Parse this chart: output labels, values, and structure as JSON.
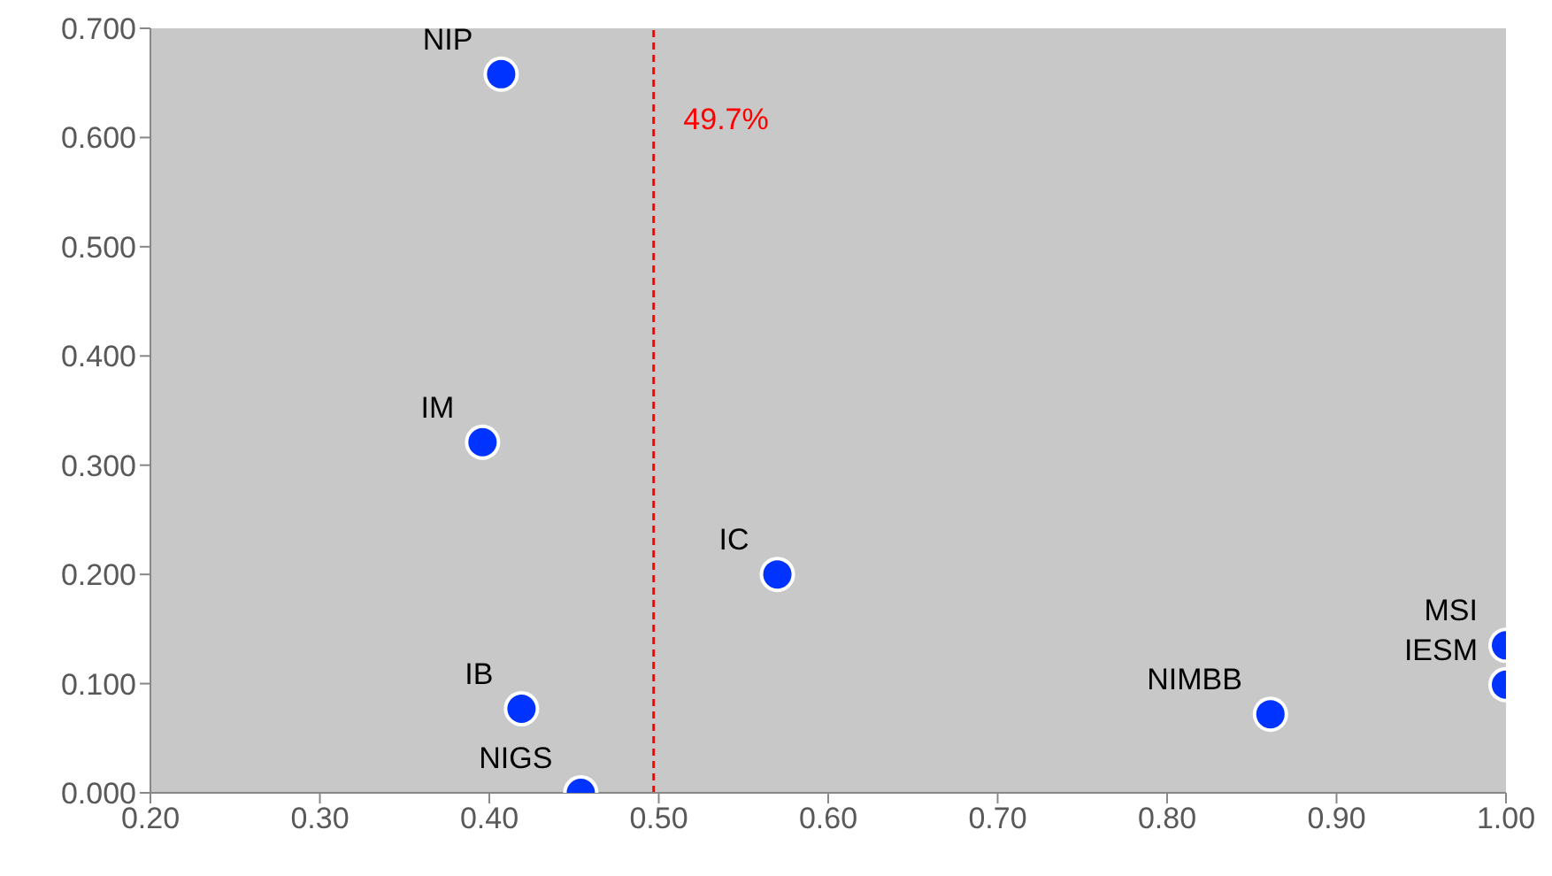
{
  "chart_data": {
    "type": "scatter",
    "x": [
      0.407,
      0.396,
      0.57,
      0.419,
      0.454,
      0.861,
      1.0,
      1.0
    ],
    "values": [
      0.658,
      0.321,
      0.2,
      0.077,
      0.0,
      0.072,
      0.135,
      0.099
    ],
    "color": "#0033ff",
    "marker": "circle",
    "xlim": [
      0.2,
      1.0
    ],
    "xticks": [
      {
        "value": 0.2,
        "label": "0.20"
      },
      {
        "value": 0.3,
        "label": "0.30"
      },
      {
        "value": 0.4,
        "label": "0.40"
      },
      {
        "value": 0.5,
        "label": "0.50"
      },
      {
        "value": 0.6,
        "label": "0.60"
      },
      {
        "value": 0.7,
        "label": "0.70"
      },
      {
        "value": 0.8,
        "label": "0.80"
      },
      {
        "value": 0.9,
        "label": "0.90"
      },
      {
        "value": 1.0,
        "label": "1.00"
      }
    ],
    "ylim": [
      0,
      0.7
    ],
    "yticks": [
      {
        "value": 0,
        "label": "0.000"
      },
      {
        "value": 0.1,
        "label": "0.100"
      },
      {
        "value": 0.2,
        "label": "0.200"
      },
      {
        "value": 0.3,
        "label": "0.300"
      },
      {
        "value": 0.4,
        "label": "0.400"
      },
      {
        "value": 0.5,
        "label": "0.500"
      },
      {
        "value": 0.6,
        "label": "0.600"
      },
      {
        "value": 0.7,
        "label": "0.700"
      }
    ],
    "grid": false,
    "legend": false,
    "ref_lines": [
      {
        "axis": "x",
        "value": 0.497,
        "label": "49.7%",
        "color": "#ff0000",
        "line_style": "dashed"
      }
    ],
    "annotations": [
      {
        "text": "NIP",
        "x": 0.407,
        "y": 0.658
      },
      {
        "text": "IM",
        "x": 0.396,
        "y": 0.321
      },
      {
        "text": "IC",
        "x": 0.57,
        "y": 0.2
      },
      {
        "text": "IB",
        "x": 0.419,
        "y": 0.077
      },
      {
        "text": "NIGS",
        "x": 0.454,
        "y": 0.0
      },
      {
        "text": "NIMBB",
        "x": 0.861,
        "y": 0.072
      },
      {
        "text": "MSI",
        "x": 1.0,
        "y": 0.135
      },
      {
        "text": "IESM",
        "x": 1.0,
        "y": 0.099
      }
    ]
  }
}
